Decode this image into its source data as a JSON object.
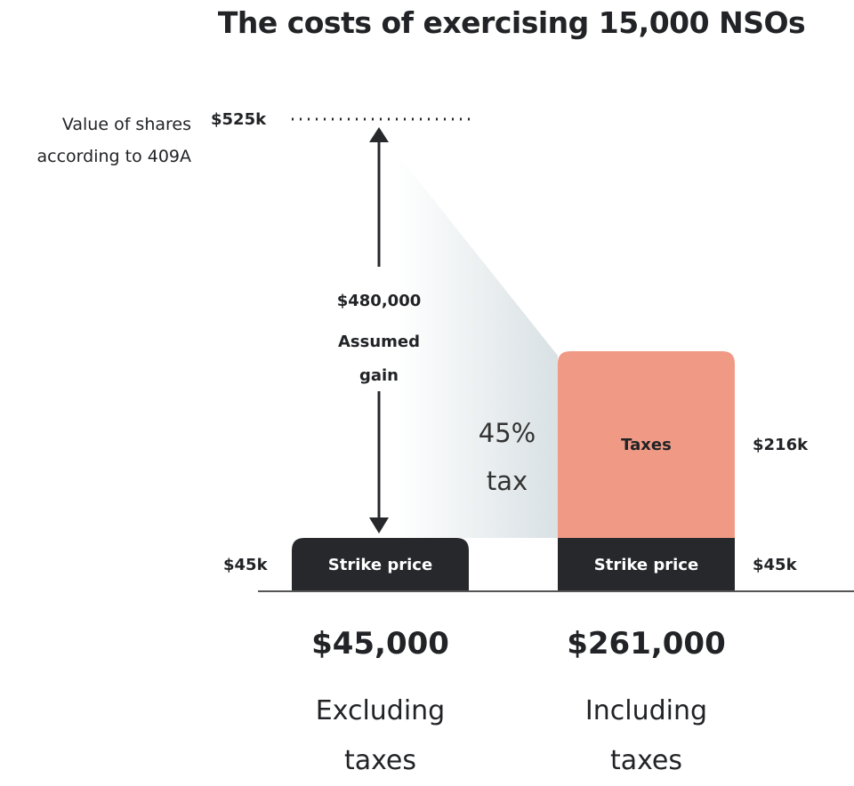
{
  "title": "The costs of exercising 15,000 NSOs",
  "colors": {
    "dark": "#27282c",
    "taxes": "#f09a86",
    "gradient_end": "#d9e1e4"
  },
  "chart_data": {
    "type": "bar",
    "title": "The costs of exercising 15,000 NSOs",
    "categories": [
      "Excluding taxes",
      "Including taxes"
    ],
    "series": [
      {
        "name": "Strike price",
        "values": [
          45,
          45
        ]
      },
      {
        "name": "Taxes",
        "values": [
          0,
          216
        ]
      }
    ],
    "units": "$k",
    "reference": {
      "label": "Value of shares according to 409A",
      "value": 525,
      "value_label": "$525k"
    },
    "gain_annotation": {
      "amount": "$480,000",
      "label": "Assumed gain"
    },
    "tax_rate_label": {
      "pct": "45%",
      "word": "tax"
    },
    "value_labels": {
      "left_strike": "$45k",
      "right_strike": "$45k",
      "taxes": "$216k"
    },
    "bar_labels": {
      "strike": "Strike price",
      "taxes": "Taxes"
    },
    "totals": [
      {
        "amount": "$45,000",
        "line1": "Excluding",
        "line2": "taxes"
      },
      {
        "amount": "$261,000",
        "line1": "Including",
        "line2": "taxes"
      }
    ]
  }
}
